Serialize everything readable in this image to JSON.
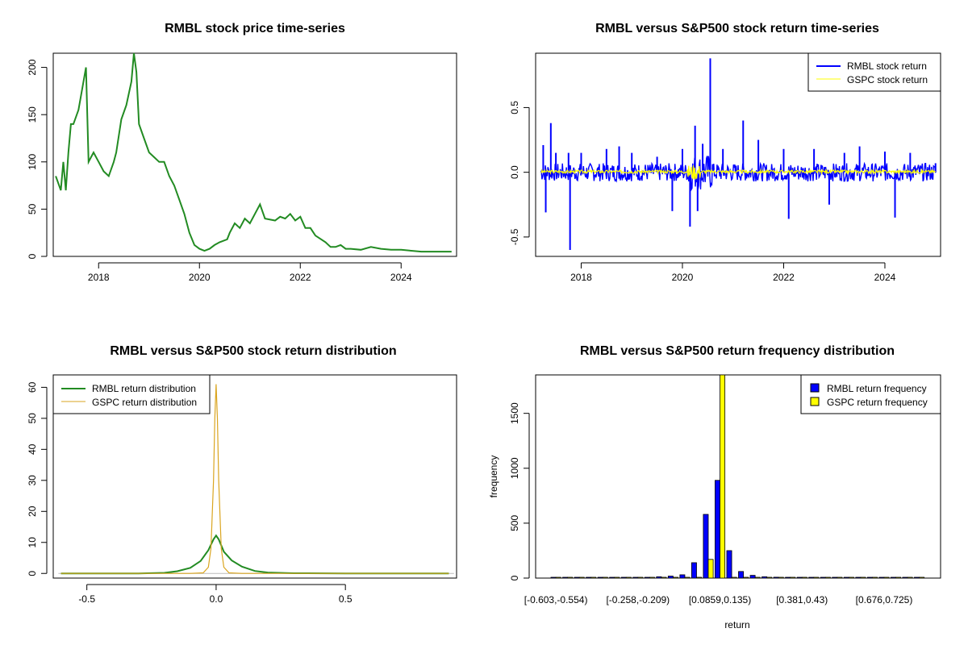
{
  "colors": {
    "rmbl_price": "#228B22",
    "rmbl_return": "#0000FF",
    "gspc_return": "#FFFF00",
    "rmbl_density": "#228B22",
    "gspc_density": "#DAA520",
    "rmbl_bar": "#0000FF",
    "gspc_bar": "#FFFF00"
  },
  "chart_data": [
    {
      "type": "line",
      "title": "RMBL stock price time-series",
      "xlabel": "",
      "ylabel": "",
      "xlim": [
        2017.1,
        2025.1
      ],
      "ylim": [
        0,
        215
      ],
      "xticks": [
        2018,
        2020,
        2022,
        2024
      ],
      "yticks": [
        0,
        50,
        100,
        150,
        200
      ],
      "series": [
        {
          "x": [
            2017.15,
            2017.25,
            2017.3,
            2017.35,
            2017.4,
            2017.45,
            2017.5,
            2017.6,
            2017.7,
            2017.75,
            2017.8,
            2017.85,
            2017.9,
            2018.0,
            2018.1,
            2018.2,
            2018.3,
            2018.35,
            2018.45,
            2018.55,
            2018.65,
            2018.7,
            2018.75,
            2018.8,
            2018.9,
            2019.0,
            2019.1,
            2019.2,
            2019.3,
            2019.4,
            2019.5,
            2019.6,
            2019.7,
            2019.8,
            2019.9,
            2020.0,
            2020.1,
            2020.2,
            2020.3,
            2020.4,
            2020.55,
            2020.6,
            2020.7,
            2020.8,
            2020.9,
            2021.0,
            2021.1,
            2021.2,
            2021.3,
            2021.5,
            2021.6,
            2021.7,
            2021.8,
            2021.9,
            2022.0,
            2022.1,
            2022.2,
            2022.3,
            2022.5,
            2022.6,
            2022.7,
            2022.8,
            2022.9,
            2023.0,
            2023.2,
            2023.4,
            2023.6,
            2023.8,
            2024.0,
            2024.2,
            2024.4,
            2024.6,
            2024.8,
            2025.0
          ],
          "y": [
            85,
            70,
            100,
            70,
            110,
            140,
            140,
            155,
            185,
            200,
            100,
            105,
            110,
            100,
            90,
            85,
            100,
            110,
            145,
            160,
            185,
            215,
            195,
            140,
            125,
            110,
            105,
            100,
            100,
            85,
            75,
            60,
            45,
            25,
            12,
            8,
            6,
            8,
            12,
            15,
            18,
            25,
            35,
            30,
            40,
            35,
            45,
            55,
            40,
            38,
            42,
            40,
            45,
            38,
            42,
            30,
            30,
            22,
            15,
            10,
            10,
            12,
            8,
            8,
            7,
            10,
            8,
            7,
            7,
            6,
            5,
            5,
            5,
            5
          ]
        }
      ]
    },
    {
      "type": "line",
      "title": "RMBL versus S&P500 stock return time-series",
      "xlabel": "",
      "ylabel": "",
      "xlim": [
        2017.1,
        2025.1
      ],
      "ylim": [
        -0.65,
        0.92
      ],
      "xticks": [
        2018,
        2020,
        2022,
        2024
      ],
      "yticks": [
        -0.5,
        0.0,
        0.5
      ],
      "legend": "top-right",
      "series": [
        {
          "name": "RMBL stock return",
          "x": [
            2017.25,
            2017.3,
            2017.4,
            2017.5,
            2017.75,
            2017.78,
            2018.0,
            2018.5,
            2018.75,
            2019.0,
            2019.5,
            2019.8,
            2020.0,
            2020.15,
            2020.25,
            2020.3,
            2020.4,
            2020.55,
            2020.8,
            2021.2,
            2021.5,
            2022.0,
            2022.1,
            2022.6,
            2022.9,
            2023.2,
            2023.5,
            2024.0,
            2024.2,
            2024.5,
            2025.0
          ],
          "y": [
            0.21,
            -0.31,
            0.38,
            0.15,
            0.15,
            -0.6,
            0.15,
            0.18,
            0.2,
            0.15,
            0.12,
            -0.3,
            0.18,
            -0.42,
            0.36,
            -0.3,
            0.22,
            0.88,
            0.18,
            0.4,
            0.25,
            0.18,
            -0.36,
            0.18,
            -0.25,
            0.15,
            0.2,
            0.16,
            -0.35,
            0.15,
            0.07
          ]
        },
        {
          "name": "GSPC stock return",
          "x": [
            2017.1,
            2018.0,
            2019.0,
            2020.15,
            2020.25,
            2020.4,
            2021.0,
            2022.0,
            2023.0,
            2024.0,
            2025.0
          ],
          "y": [
            0.0,
            0.01,
            0.0,
            0.09,
            -0.12,
            0.05,
            0.02,
            0.03,
            0.02,
            0.01,
            0.0
          ]
        }
      ]
    },
    {
      "type": "line",
      "title": "RMBL versus S&P500 stock return distribution",
      "xlabel": "",
      "ylabel": "",
      "xlim": [
        -0.63,
        0.93
      ],
      "ylim": [
        -1.5,
        64
      ],
      "xticks": [
        -0.5,
        0.0,
        0.5
      ],
      "yticks": [
        0,
        10,
        20,
        30,
        40,
        50,
        60
      ],
      "legend": "top-left",
      "series": [
        {
          "name": "RMBL return distribution",
          "x": [
            -0.6,
            -0.3,
            -0.2,
            -0.15,
            -0.1,
            -0.06,
            -0.03,
            -0.01,
            0.0,
            0.01,
            0.03,
            0.06,
            0.1,
            0.15,
            0.2,
            0.3,
            0.5,
            0.9
          ],
          "y": [
            0,
            0,
            0.2,
            0.7,
            1.8,
            4.0,
            7.5,
            11,
            12.2,
            11,
            7.0,
            4.2,
            2.2,
            0.8,
            0.3,
            0.05,
            0,
            0
          ]
        },
        {
          "name": "GSPC return distribution",
          "x": [
            -0.6,
            -0.1,
            -0.05,
            -0.03,
            -0.02,
            -0.01,
            -0.005,
            0.0,
            0.005,
            0.01,
            0.02,
            0.03,
            0.05,
            0.1,
            0.9
          ],
          "y": [
            0,
            0,
            0.2,
            2,
            8,
            30,
            50,
            61,
            50,
            30,
            8,
            2,
            0.2,
            0,
            0
          ]
        }
      ]
    },
    {
      "type": "bar",
      "title": "RMBL versus S&P500 return frequency distribution",
      "xlabel": "return",
      "ylabel": "frequency",
      "ylim": [
        0,
        1850
      ],
      "yticks": [
        0,
        500,
        1000,
        1500
      ],
      "legend": "top-right",
      "categories": [
        "[-0.603,-0.554)",
        "",
        "",
        "",
        "",
        "",
        "",
        "[-0.258,-0.209)",
        "",
        "",
        "",
        "",
        "",
        "",
        "[0.0859,0.135)",
        "",
        "",
        "",
        "",
        "",
        "",
        "[0.381,0.43)",
        "",
        "",
        "",
        "",
        "",
        "",
        "[0.676,0.725)",
        "",
        "",
        ""
      ],
      "series": [
        {
          "name": "RMBL return frequency",
          "values": [
            1,
            0,
            0,
            1,
            2,
            1,
            3,
            4,
            6,
            12,
            18,
            30,
            140,
            580,
            890,
            250,
            60,
            25,
            12,
            8,
            5,
            3,
            2,
            1,
            1,
            1,
            0,
            0,
            1,
            0,
            0,
            1
          ]
        },
        {
          "name": "GSPC return frequency",
          "values": [
            0,
            0,
            0,
            0,
            0,
            0,
            0,
            0,
            0,
            0,
            0,
            0,
            0,
            170,
            1850,
            0,
            0,
            0,
            0,
            0,
            0,
            0,
            0,
            0,
            0,
            0,
            0,
            0,
            0,
            0,
            0,
            0
          ]
        }
      ]
    }
  ]
}
